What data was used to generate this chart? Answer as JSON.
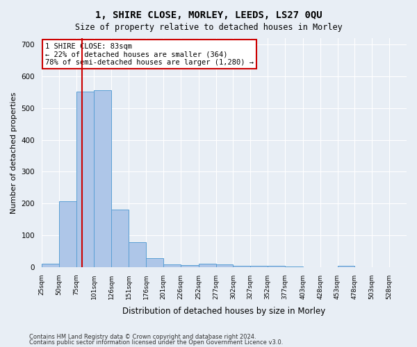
{
  "title": "1, SHIRE CLOSE, MORLEY, LEEDS, LS27 0QU",
  "subtitle": "Size of property relative to detached houses in Morley",
  "xlabel": "Distribution of detached houses by size in Morley",
  "ylabel": "Number of detached properties",
  "bin_labels": [
    "25sqm",
    "50sqm",
    "75sqm",
    "101sqm",
    "126sqm",
    "151sqm",
    "176sqm",
    "201sqm",
    "226sqm",
    "252sqm",
    "277sqm",
    "302sqm",
    "327sqm",
    "352sqm",
    "377sqm",
    "403sqm",
    "428sqm",
    "453sqm",
    "478sqm",
    "503sqm",
    "528sqm"
  ],
  "bin_edges": [
    25,
    50,
    75,
    101,
    126,
    151,
    176,
    201,
    226,
    252,
    277,
    302,
    327,
    352,
    377,
    403,
    428,
    453,
    478,
    503,
    528,
    553
  ],
  "bar_values": [
    10,
    208,
    552,
    556,
    180,
    78,
    27,
    9,
    7,
    11,
    8,
    4,
    4,
    3,
    2,
    0,
    0,
    5,
    0,
    0,
    0
  ],
  "bar_color": "#aec6e8",
  "bar_edge_color": "#5a9fd4",
  "property_size": 83,
  "red_line_color": "#cc0000",
  "annotation_text": "1 SHIRE CLOSE: 83sqm\n← 22% of detached houses are smaller (364)\n78% of semi-detached houses are larger (1,280) →",
  "annotation_box_color": "#ffffff",
  "annotation_box_edge_color": "#cc0000",
  "ylim": [
    0,
    720
  ],
  "yticks": [
    0,
    100,
    200,
    300,
    400,
    500,
    600,
    700
  ],
  "footnote1": "Contains HM Land Registry data © Crown copyright and database right 2024.",
  "footnote2": "Contains public sector information licensed under the Open Government Licence v3.0.",
  "background_color": "#e8eef5",
  "plot_bg_color": "#e8eef5"
}
